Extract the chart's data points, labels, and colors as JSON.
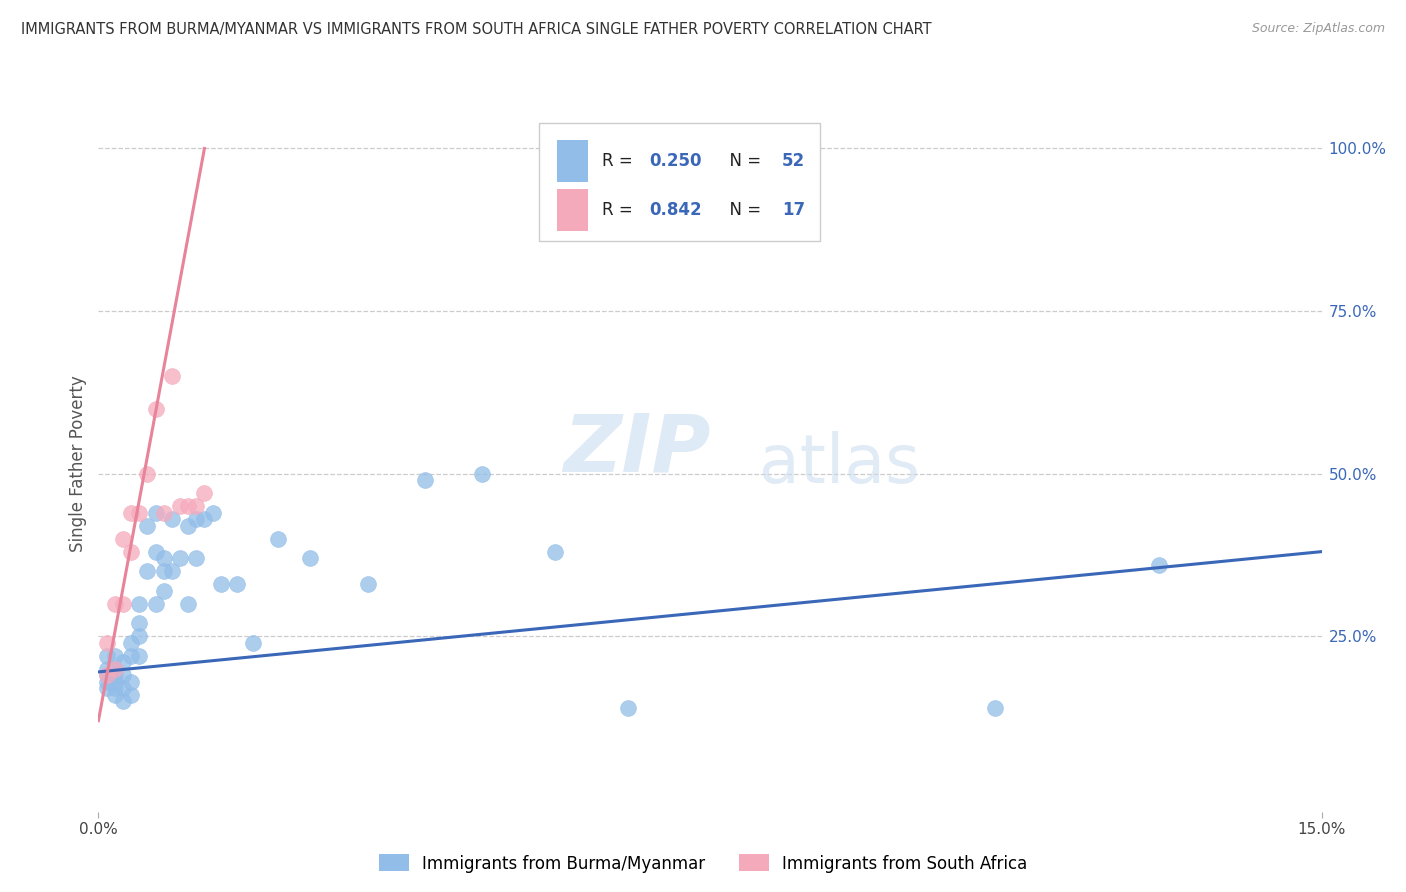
{
  "title": "IMMIGRANTS FROM BURMA/MYANMAR VS IMMIGRANTS FROM SOUTH AFRICA SINGLE FATHER POVERTY CORRELATION CHART",
  "source": "Source: ZipAtlas.com",
  "ylabel": "Single Father Poverty",
  "legend_r1": "R = 0.250",
  "legend_n1": "N = 52",
  "legend_r2": "R = 0.842",
  "legend_n2": "N = 17",
  "blue_color": "#92BDE8",
  "pink_color": "#F5AABC",
  "blue_line_color": "#3A67B8",
  "pink_line_color": "#E8849A",
  "watermark_zip": "ZIP",
  "watermark_atlas": "atlas",
  "xlim": [
    0.0,
    0.15
  ],
  "ylim": [
    -0.02,
    1.05
  ],
  "y_ticks": [
    0.25,
    0.5,
    0.75,
    1.0
  ],
  "y_tick_labels": [
    "25.0%",
    "50.0%",
    "75.0%",
    "100.0%"
  ],
  "blue_scatter_x": [
    0.001,
    0.001,
    0.001,
    0.001,
    0.001,
    0.002,
    0.002,
    0.002,
    0.002,
    0.002,
    0.002,
    0.003,
    0.003,
    0.003,
    0.003,
    0.004,
    0.004,
    0.004,
    0.004,
    0.005,
    0.005,
    0.005,
    0.005,
    0.006,
    0.006,
    0.007,
    0.007,
    0.007,
    0.008,
    0.008,
    0.008,
    0.009,
    0.009,
    0.01,
    0.011,
    0.011,
    0.012,
    0.012,
    0.013,
    0.014,
    0.015,
    0.017,
    0.019,
    0.022,
    0.026,
    0.033,
    0.04,
    0.047,
    0.056,
    0.065,
    0.11,
    0.13
  ],
  "blue_scatter_y": [
    0.17,
    0.18,
    0.19,
    0.2,
    0.22,
    0.16,
    0.18,
    0.2,
    0.22,
    0.17,
    0.19,
    0.15,
    0.17,
    0.19,
    0.21,
    0.16,
    0.18,
    0.22,
    0.24,
    0.22,
    0.25,
    0.27,
    0.3,
    0.35,
    0.42,
    0.3,
    0.38,
    0.44,
    0.32,
    0.35,
    0.37,
    0.35,
    0.43,
    0.37,
    0.3,
    0.42,
    0.37,
    0.43,
    0.43,
    0.44,
    0.33,
    0.33,
    0.24,
    0.4,
    0.37,
    0.33,
    0.49,
    0.5,
    0.38,
    0.14,
    0.14,
    0.36
  ],
  "pink_scatter_x": [
    0.001,
    0.001,
    0.002,
    0.002,
    0.003,
    0.003,
    0.004,
    0.004,
    0.005,
    0.006,
    0.007,
    0.008,
    0.009,
    0.01,
    0.011,
    0.012,
    0.013
  ],
  "pink_scatter_y": [
    0.19,
    0.24,
    0.2,
    0.3,
    0.3,
    0.4,
    0.38,
    0.44,
    0.44,
    0.5,
    0.6,
    0.44,
    0.65,
    0.45,
    0.45,
    0.45,
    0.47
  ],
  "blue_line_x": [
    0.0,
    0.15
  ],
  "blue_line_y": [
    0.195,
    0.38
  ],
  "pink_line_x": [
    0.0,
    0.013
  ],
  "pink_line_y": [
    0.12,
    1.0
  ]
}
